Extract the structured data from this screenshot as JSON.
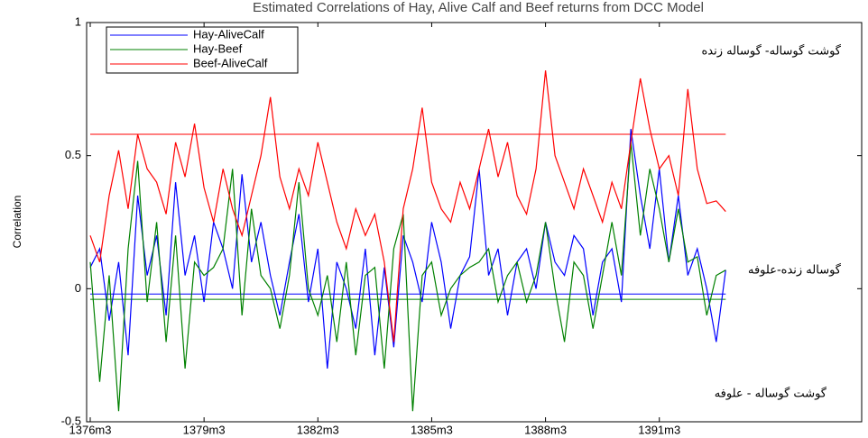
{
  "chart_data": {
    "type": "line",
    "title": "Estimated Correlations of Hay, Alive Calf and Beef returns from DCC Model",
    "y_label": "Correlation",
    "x": [
      0,
      3,
      6,
      9,
      12,
      15,
      18,
      21,
      24,
      27,
      30,
      33,
      36,
      39,
      42,
      45,
      48,
      51,
      54,
      57,
      60,
      63,
      66,
      69,
      72,
      75,
      78,
      81,
      84,
      87,
      90,
      93,
      96,
      99,
      102,
      105,
      108,
      111,
      114,
      117,
      120,
      123,
      126,
      129,
      132,
      135,
      138,
      141,
      144,
      147,
      150,
      153,
      156,
      159,
      162,
      165,
      168,
      171,
      174,
      177,
      180,
      183,
      186,
      189,
      192,
      195,
      198,
      201
    ],
    "series": [
      {
        "name": "Hay-AliveCalf",
        "color": "#0000ff",
        "values": [
          0.08,
          0.15,
          -0.12,
          0.1,
          -0.25,
          0.35,
          0.05,
          0.2,
          -0.1,
          0.4,
          0.05,
          0.2,
          -0.05,
          0.25,
          0.15,
          0.0,
          0.43,
          0.1,
          0.25,
          0.05,
          -0.1,
          0.1,
          0.28,
          -0.05,
          0.15,
          -0.3,
          0.1,
          0.0,
          -0.15,
          0.15,
          -0.25,
          0.08,
          -0.22,
          0.2,
          0.1,
          -0.05,
          0.25,
          0.1,
          -0.15,
          0.05,
          0.12,
          0.45,
          0.05,
          0.15,
          -0.1,
          0.1,
          0.15,
          0.0,
          0.25,
          0.1,
          0.05,
          0.2,
          0.15,
          -0.1,
          0.1,
          0.15,
          -0.05,
          0.6,
          0.35,
          0.15,
          0.45,
          0.1,
          0.35,
          0.05,
          0.15,
          0.0,
          -0.2,
          0.07
        ]
      },
      {
        "name": "Hay-Beef",
        "color": "#008000",
        "values": [
          0.1,
          -0.35,
          0.05,
          -0.46,
          0.15,
          0.48,
          -0.05,
          0.25,
          -0.2,
          0.2,
          -0.3,
          0.1,
          0.05,
          0.08,
          0.15,
          0.45,
          -0.1,
          0.3,
          0.05,
          0.0,
          -0.15,
          0.05,
          0.4,
          0.0,
          -0.1,
          0.05,
          -0.2,
          0.1,
          -0.25,
          0.05,
          0.08,
          -0.3,
          0.15,
          0.28,
          -0.46,
          0.05,
          0.1,
          -0.1,
          0.0,
          0.05,
          0.08,
          0.1,
          0.15,
          -0.05,
          0.05,
          0.1,
          -0.05,
          0.05,
          0.25,
          0.0,
          -0.2,
          0.1,
          0.05,
          -0.15,
          0.05,
          0.25,
          0.05,
          0.55,
          0.2,
          0.45,
          0.3,
          0.1,
          0.3,
          0.1,
          0.12,
          -0.1,
          0.05,
          0.07
        ]
      },
      {
        "name": "Beef-AliveCalf",
        "color": "#ff0000",
        "values": [
          0.2,
          0.1,
          0.35,
          0.52,
          0.3,
          0.58,
          0.45,
          0.4,
          0.28,
          0.55,
          0.42,
          0.62,
          0.38,
          0.25,
          0.45,
          0.3,
          0.2,
          0.35,
          0.5,
          0.72,
          0.42,
          0.3,
          0.45,
          0.35,
          0.55,
          0.4,
          0.25,
          0.15,
          0.3,
          0.2,
          0.28,
          0.1,
          -0.2,
          0.3,
          0.45,
          0.68,
          0.4,
          0.3,
          0.25,
          0.4,
          0.3,
          0.45,
          0.6,
          0.42,
          0.55,
          0.35,
          0.28,
          0.45,
          0.82,
          0.5,
          0.4,
          0.3,
          0.45,
          0.35,
          0.25,
          0.4,
          0.3,
          0.55,
          0.79,
          0.6,
          0.45,
          0.5,
          0.35,
          0.75,
          0.45,
          0.32,
          0.33,
          0.29
        ]
      }
    ],
    "hlines": [
      {
        "value": 0.58,
        "color": "#ff0000"
      },
      {
        "value": -0.02,
        "color": "#0000ff"
      },
      {
        "value": -0.04,
        "color": "#008000"
      }
    ],
    "annotations": [
      "گوشت گوساله- گوساله زنده",
      "گوساله زنده-علوفه",
      "گوشت گوساله - علوفه"
    ],
    "xlim": [
      0,
      244
    ],
    "xticks": [
      {
        "value": 0,
        "label": "1376m3"
      },
      {
        "value": 36,
        "label": "1379m3"
      },
      {
        "value": 72,
        "label": "1382m3"
      },
      {
        "value": 108,
        "label": "1385m3"
      },
      {
        "value": 144,
        "label": "1388m3"
      },
      {
        "value": 180,
        "label": "1391m3"
      }
    ],
    "ylim": [
      -0.5,
      1
    ],
    "yticks": [
      -0.5,
      0,
      0.5,
      1
    ],
    "legend": "upper left"
  }
}
